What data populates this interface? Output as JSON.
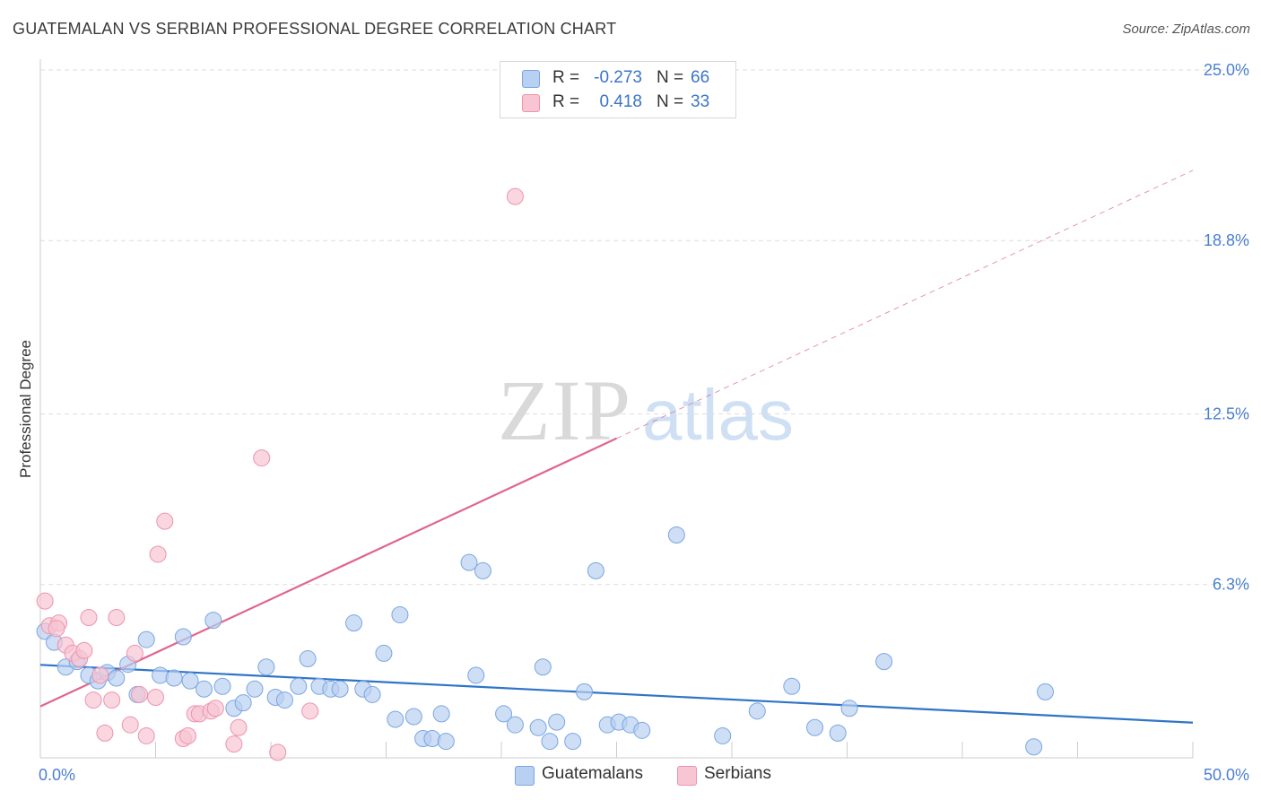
{
  "title": "GUATEMALAN VS SERBIAN PROFESSIONAL DEGREE CORRELATION CHART",
  "source": "Source: ZipAtlas.com",
  "watermark": {
    "zip": "ZIP",
    "atlas": "atlas"
  },
  "colors": {
    "blue_fill": "#b8d0f1",
    "blue_stroke": "#7aa6e3",
    "blue_line": "#2f74c8",
    "pink_fill": "#f7c5d3",
    "pink_stroke": "#ee93ad",
    "pink_line": "#e0658f",
    "grid": "#dddddd",
    "axis_text": "#4a7fd0"
  },
  "legend": {
    "rows": [
      {
        "r_label": "R =",
        "r_value": "-0.273",
        "n_label": "N =",
        "n_value": "66"
      },
      {
        "r_label": "R =",
        "r_value": "0.418",
        "n_label": "N =",
        "n_value": "33"
      }
    ]
  },
  "bottom_legend": {
    "items": [
      "Guatemalans",
      "Serbians"
    ]
  },
  "chart_data": {
    "type": "scatter",
    "title": "GUATEMALAN VS SERBIAN PROFESSIONAL DEGREE CORRELATION CHART",
    "xlabel": "",
    "ylabel": "Professional Degree",
    "xlim": [
      0,
      50
    ],
    "ylim": [
      0,
      25
    ],
    "x_tick_labels": [
      {
        "value": 0,
        "label": "0.0%"
      },
      {
        "value": 50,
        "label": "50.0%"
      }
    ],
    "y_tick_labels": [
      {
        "value": 6.3,
        "label": "6.3%"
      },
      {
        "value": 12.5,
        "label": "12.5%"
      },
      {
        "value": 18.8,
        "label": "18.8%"
      },
      {
        "value": 25.0,
        "label": "25.0%"
      }
    ],
    "grid": true,
    "series": [
      {
        "name": "Guatemalans",
        "color": "#b8d0f1",
        "trend": {
          "x": [
            0,
            50
          ],
          "y": [
            3.38,
            1.28
          ],
          "dashed_to": 50
        },
        "points": [
          [
            0.2,
            4.6
          ],
          [
            0.6,
            4.2
          ],
          [
            1.1,
            3.3
          ],
          [
            1.6,
            3.5
          ],
          [
            2.1,
            3.0
          ],
          [
            2.5,
            2.8
          ],
          [
            2.9,
            3.1
          ],
          [
            3.3,
            2.9
          ],
          [
            3.8,
            3.4
          ],
          [
            4.2,
            2.3
          ],
          [
            4.6,
            4.3
          ],
          [
            5.2,
            3.0
          ],
          [
            5.8,
            2.9
          ],
          [
            6.2,
            4.4
          ],
          [
            6.5,
            2.8
          ],
          [
            7.1,
            2.5
          ],
          [
            7.5,
            5.0
          ],
          [
            7.9,
            2.6
          ],
          [
            8.4,
            1.8
          ],
          [
            8.8,
            2.0
          ],
          [
            9.3,
            2.5
          ],
          [
            9.8,
            3.3
          ],
          [
            10.2,
            2.2
          ],
          [
            10.6,
            2.1
          ],
          [
            11.2,
            2.6
          ],
          [
            11.6,
            3.6
          ],
          [
            12.1,
            2.6
          ],
          [
            12.6,
            2.5
          ],
          [
            13.0,
            2.5
          ],
          [
            13.6,
            4.9
          ],
          [
            14.0,
            2.5
          ],
          [
            14.4,
            2.3
          ],
          [
            14.9,
            3.8
          ],
          [
            15.4,
            1.4
          ],
          [
            15.6,
            5.2
          ],
          [
            16.2,
            1.5
          ],
          [
            16.6,
            0.7
          ],
          [
            17.0,
            0.7
          ],
          [
            17.4,
            1.6
          ],
          [
            17.6,
            0.6
          ],
          [
            18.6,
            7.1
          ],
          [
            18.9,
            3.0
          ],
          [
            19.2,
            6.8
          ],
          [
            20.1,
            1.6
          ],
          [
            20.6,
            1.2
          ],
          [
            21.6,
            1.1
          ],
          [
            21.8,
            3.3
          ],
          [
            22.1,
            0.6
          ],
          [
            22.4,
            1.3
          ],
          [
            23.1,
            0.6
          ],
          [
            23.6,
            2.4
          ],
          [
            24.1,
            6.8
          ],
          [
            24.6,
            1.2
          ],
          [
            25.1,
            1.3
          ],
          [
            25.6,
            1.2
          ],
          [
            26.1,
            1.0
          ],
          [
            27.6,
            8.1
          ],
          [
            29.6,
            0.8
          ],
          [
            31.1,
            1.7
          ],
          [
            32.6,
            2.6
          ],
          [
            33.6,
            1.1
          ],
          [
            34.6,
            0.9
          ],
          [
            35.1,
            1.8
          ],
          [
            36.6,
            3.5
          ],
          [
            43.6,
            2.4
          ],
          [
            43.1,
            0.4
          ]
        ]
      },
      {
        "name": "Serbians",
        "color": "#f7c5d3",
        "trend": {
          "x": [
            0,
            25
          ],
          "y": [
            1.87,
            11.61
          ],
          "dashed_to": 50
        },
        "points": [
          [
            0.2,
            5.7
          ],
          [
            0.4,
            4.8
          ],
          [
            0.8,
            4.9
          ],
          [
            1.1,
            4.1
          ],
          [
            1.4,
            3.8
          ],
          [
            1.7,
            3.6
          ],
          [
            1.9,
            3.9
          ],
          [
            2.1,
            5.1
          ],
          [
            2.3,
            2.1
          ],
          [
            2.6,
            3.0
          ],
          [
            2.8,
            0.9
          ],
          [
            3.1,
            2.1
          ],
          [
            3.3,
            5.1
          ],
          [
            3.9,
            1.2
          ],
          [
            4.1,
            3.8
          ],
          [
            4.3,
            2.3
          ],
          [
            4.6,
            0.8
          ],
          [
            5.0,
            2.2
          ],
          [
            5.1,
            7.4
          ],
          [
            5.4,
            8.6
          ],
          [
            6.2,
            0.7
          ],
          [
            6.4,
            0.8
          ],
          [
            6.7,
            1.6
          ],
          [
            6.9,
            1.6
          ],
          [
            7.4,
            1.7
          ],
          [
            7.6,
            1.8
          ],
          [
            8.4,
            0.5
          ],
          [
            8.6,
            1.1
          ],
          [
            9.6,
            10.9
          ],
          [
            10.3,
            0.2
          ],
          [
            11.7,
            1.7
          ],
          [
            20.6,
            20.4
          ],
          [
            0.7,
            4.7
          ]
        ]
      }
    ]
  }
}
